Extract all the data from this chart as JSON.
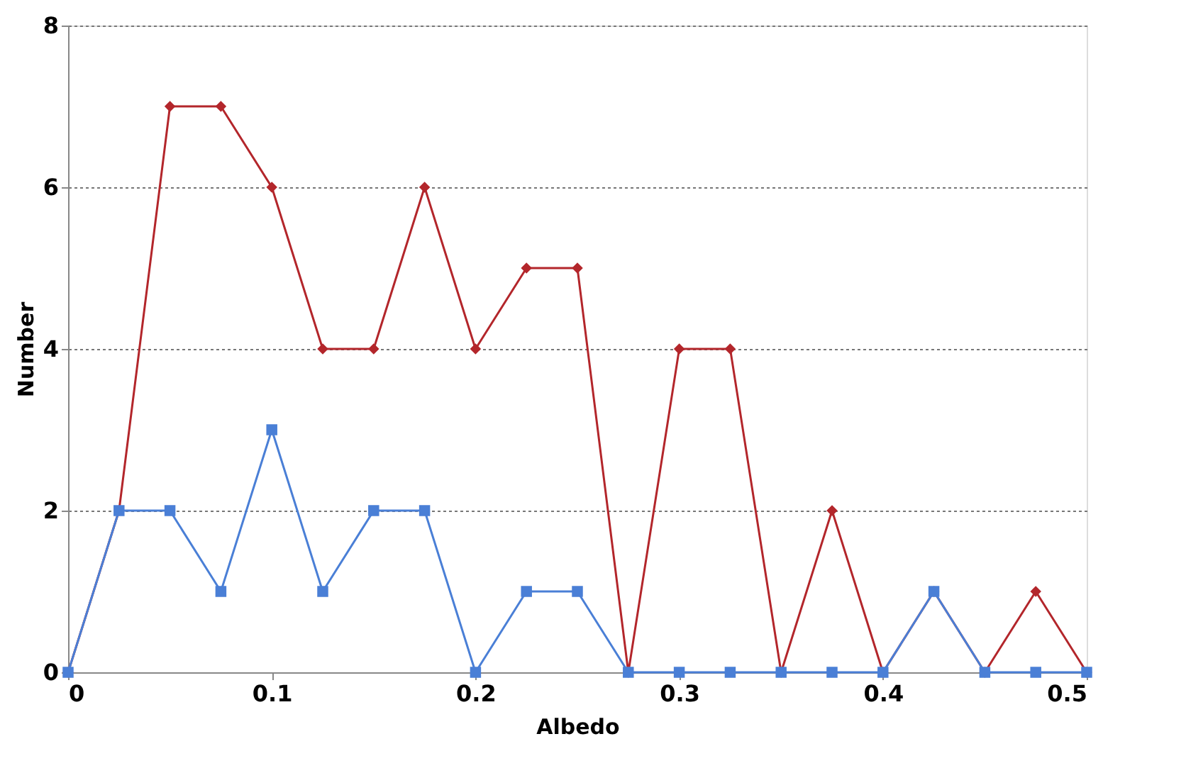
{
  "chart_data": {
    "type": "line",
    "xlabel": "Albedo",
    "ylabel": "Number",
    "x": [
      0,
      0.025,
      0.05,
      0.075,
      0.1,
      0.125,
      0.15,
      0.175,
      0.2,
      0.225,
      0.25,
      0.275,
      0.3,
      0.325,
      0.35,
      0.375,
      0.4,
      0.425,
      0.45,
      0.475,
      0.5
    ],
    "series": [
      {
        "color": "#b3262b",
        "marker": "diamond",
        "values": [
          0,
          2,
          7,
          7,
          6,
          4,
          4,
          6,
          4,
          5,
          5,
          0,
          4,
          4,
          0,
          2,
          0,
          1,
          0,
          1,
          0
        ]
      },
      {
        "color": "#4a7fd6",
        "marker": "square",
        "values": [
          0,
          2,
          2,
          1,
          3,
          1,
          2,
          2,
          0,
          1,
          1,
          0,
          0,
          0,
          0,
          0,
          0,
          1,
          0,
          0,
          0
        ]
      }
    ],
    "xlim": [
      0,
      0.5
    ],
    "xticks": [
      0,
      0.1,
      0.2,
      0.3,
      0.4,
      0.5
    ],
    "ylim": [
      0,
      8
    ],
    "yticks": [
      0,
      2,
      4,
      6,
      8
    ],
    "grid": "y",
    "line_style": "solid"
  }
}
